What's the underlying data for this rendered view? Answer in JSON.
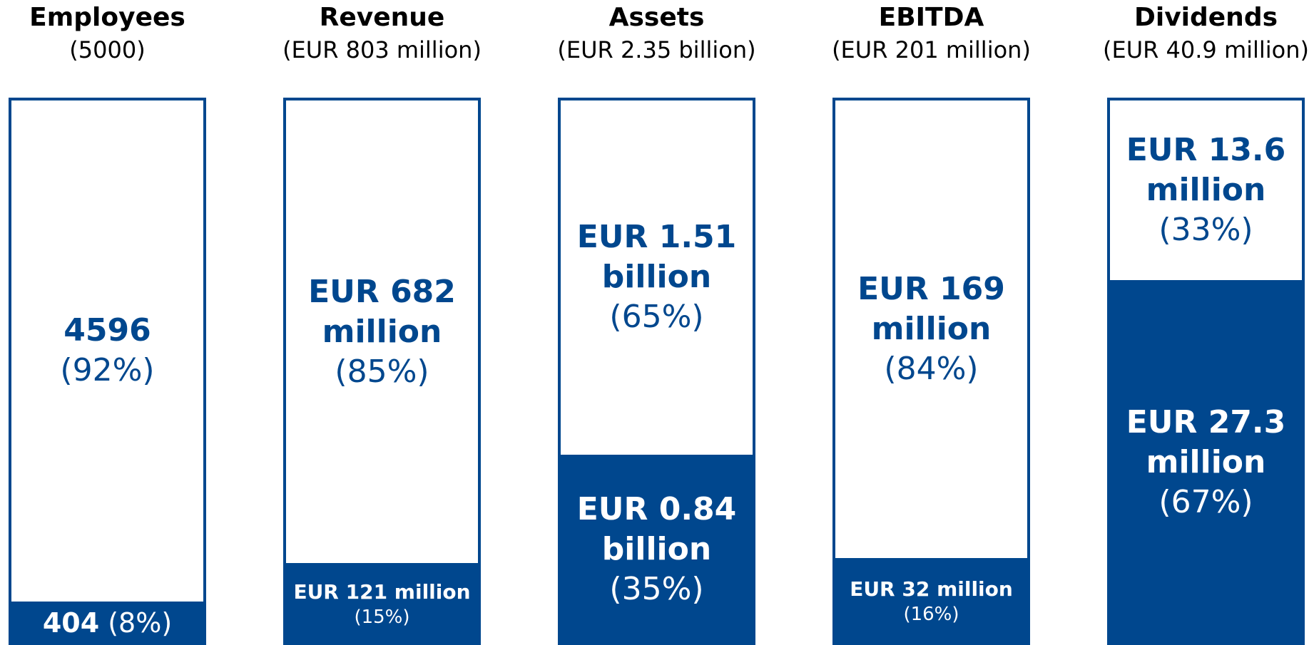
{
  "chart_data": {
    "type": "stacked_bar_100",
    "categories": [
      "Employees",
      "Revenue",
      "Assets",
      "EBITDA",
      "Dividends"
    ],
    "subtitles": [
      "(5000)",
      "(EUR 803 million)",
      "(EUR 2.35 billion)",
      "(EUR 201 million)",
      "(EUR 40.9 million)"
    ],
    "series": [
      {
        "color": "#00478e",
        "values": [
          8,
          15,
          35,
          16,
          67
        ],
        "value_labels": [
          "(8%)",
          "(15%)",
          "(35%)",
          "(16%)",
          "(67%)"
        ],
        "amounts": [
          "404",
          "EUR 121 million",
          "EUR 0.84 billion",
          "EUR 32 million",
          "EUR 27.3 million"
        ]
      },
      {
        "color": "#ffffff",
        "values": [
          92,
          85,
          65,
          84,
          33
        ],
        "value_labels": [
          "(92%)",
          "(85%)",
          "(65%)",
          "(84%)",
          "(33%)"
        ],
        "amounts": [
          "4596",
          "EUR 682 million",
          "EUR 1.51 billion",
          "EUR 169 million",
          "EUR 13.6 million"
        ]
      }
    ],
    "ylim": [
      0,
      100
    ]
  }
}
